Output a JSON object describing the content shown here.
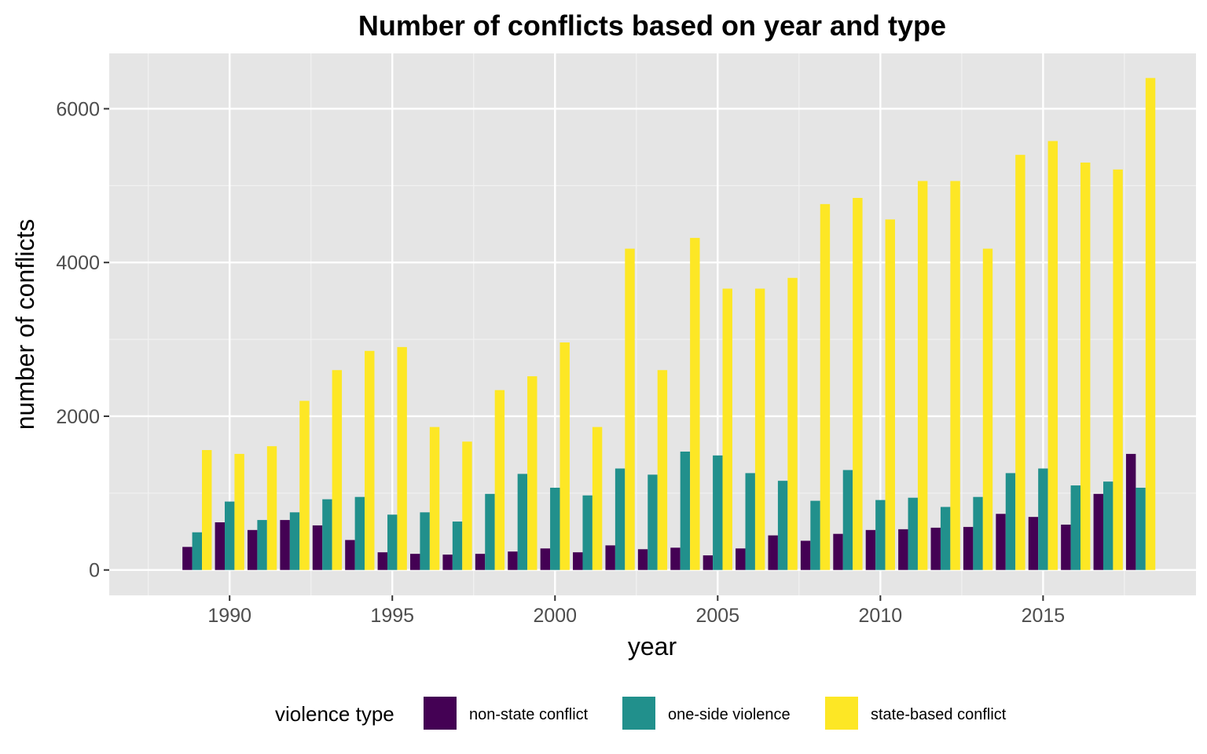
{
  "chart_data": {
    "type": "bar",
    "title": "Number of conflicts based on year and type",
    "xlabel": "year",
    "ylabel": "number of conflicts",
    "x": [
      1989,
      1990,
      1991,
      1992,
      1993,
      1994,
      1995,
      1996,
      1997,
      1998,
      1999,
      2000,
      2001,
      2002,
      2003,
      2004,
      2005,
      2006,
      2007,
      2008,
      2009,
      2010,
      2011,
      2012,
      2013,
      2014,
      2015,
      2016,
      2017,
      2018
    ],
    "series": [
      {
        "name": "non-state conflict",
        "color": "#440154",
        "values": [
          300,
          620,
          520,
          650,
          580,
          390,
          230,
          210,
          200,
          210,
          240,
          280,
          230,
          320,
          270,
          290,
          190,
          280,
          450,
          380,
          470,
          520,
          530,
          550,
          560,
          730,
          690,
          590,
          990,
          1510
        ]
      },
      {
        "name": "one-side violence",
        "color": "#21908c",
        "values": [
          490,
          890,
          650,
          750,
          920,
          950,
          720,
          750,
          630,
          990,
          1250,
          1070,
          970,
          1320,
          1240,
          1540,
          1490,
          1260,
          1160,
          900,
          1300,
          910,
          940,
          820,
          950,
          1260,
          1320,
          1100,
          1150,
          1070
        ]
      },
      {
        "name": "state-based conflict",
        "color": "#fde725",
        "values": [
          1560,
          1510,
          1610,
          2200,
          2600,
          2850,
          2900,
          1860,
          1670,
          2340,
          2520,
          2960,
          1860,
          4180,
          2600,
          4320,
          3660,
          3660,
          3800,
          4760,
          4840,
          4560,
          5060,
          5060,
          4180,
          5400,
          5580,
          5300,
          5210,
          6400
        ]
      }
    ],
    "xlim": [
      1986.3,
      2019.7
    ],
    "ylim": [
      -330,
      6720
    ],
    "x_ticks": [
      1990,
      1995,
      2000,
      2005,
      2010,
      2015
    ],
    "x_tick_labels": [
      "1990",
      "1995",
      "2000",
      "2005",
      "2010",
      "2015"
    ],
    "y_ticks": [
      0,
      2000,
      4000,
      6000
    ],
    "y_tick_labels": [
      "0",
      "2000",
      "4000",
      "6000"
    ],
    "grid": true,
    "background": "#e5e5e5",
    "legend": {
      "title": "violence type",
      "position": "bottom",
      "labels": [
        "non-state conflict",
        "one-side violence",
        "state-based conflict"
      ]
    }
  }
}
